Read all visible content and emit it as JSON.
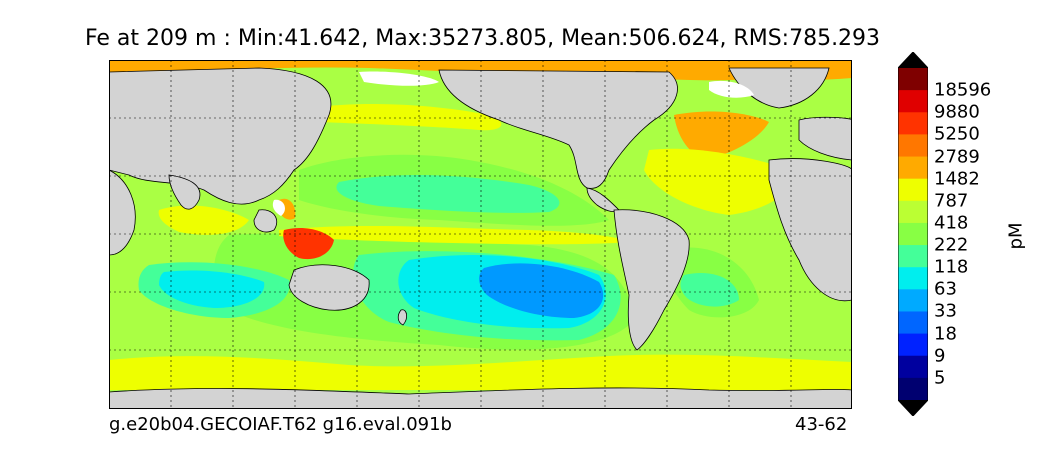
{
  "title": "Fe at 209 m : Min:41.642, Max:35273.805, Mean:506.624, RMS:785.293",
  "footer": {
    "left": "g.e20b04.GECOIAF.T62 g16.eval.091b",
    "right": "43-62"
  },
  "colorbar": {
    "unit": "pM",
    "levels": [
      "18596",
      "9880",
      "5250",
      "2789",
      "1482",
      "787",
      "418",
      "222",
      "118",
      "63",
      "33",
      "18",
      "9",
      "5"
    ],
    "colors": [
      "#7f0000",
      "#e00000",
      "#ff3300",
      "#ff7700",
      "#ffaa00",
      "#eeff00",
      "#bbff33",
      "#88ff44",
      "#44ff99",
      "#00eeee",
      "#00aaff",
      "#0066ff",
      "#0022ff",
      "#00009f",
      "#000070"
    ],
    "over_color": "#000000",
    "under_color": "#000000"
  },
  "map_colors": {
    "land": "#d3d3d3",
    "ocean_base": "#aaff44",
    "high": "#ffaa00",
    "mid_high": "#eeff00",
    "low": "#44ff99",
    "lower": "#00eeee",
    "lowest": "#0099ff",
    "peak": "#ff3300",
    "missing": "#ffffff"
  }
}
